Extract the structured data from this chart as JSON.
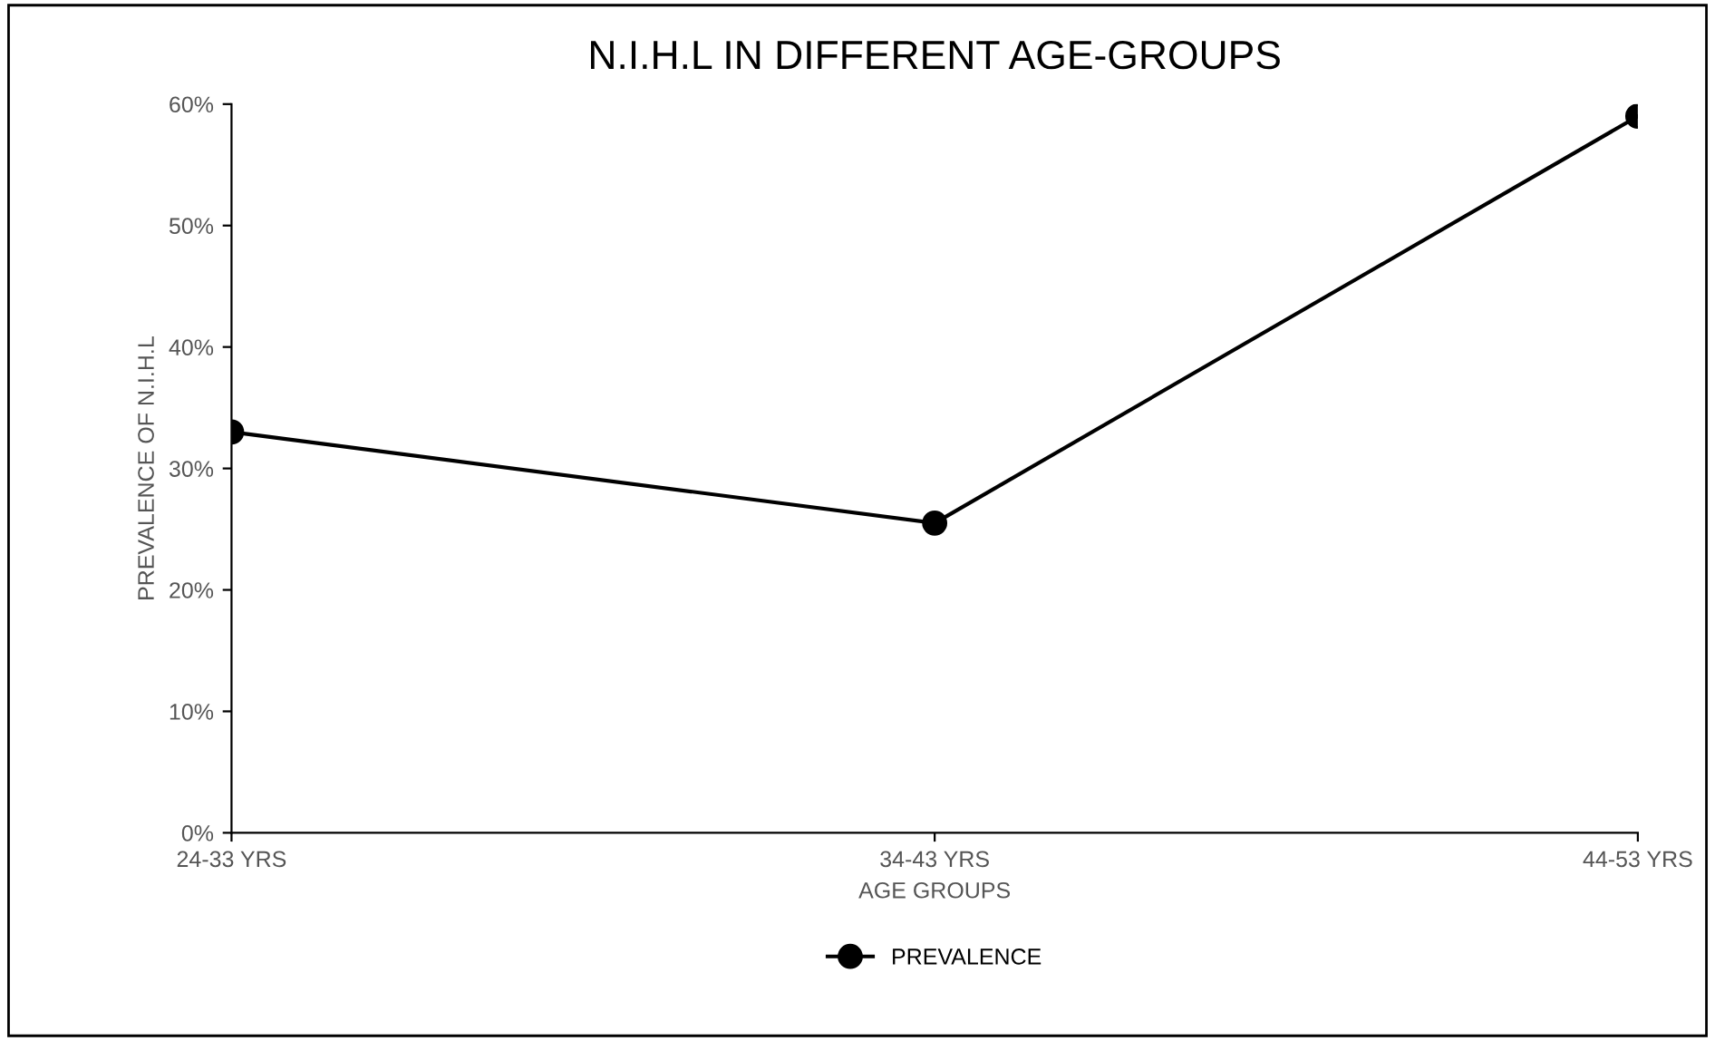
{
  "chart_data": {
    "type": "line",
    "title": "N.I.H.L IN DIFFERENT AGE-GROUPS",
    "xlabel": "AGE GROUPS",
    "ylabel": "PREVALENCE OF N.I.H.L",
    "categories": [
      "24-33 YRS",
      "34-43 YRS",
      "44-53 YRS"
    ],
    "series": [
      {
        "name": "PREVALENCE",
        "color": "#000000",
        "values": [
          33,
          25.5,
          59
        ]
      }
    ],
    "ylim": [
      0,
      60
    ],
    "yticks": [
      {
        "value": 0,
        "label": "0%"
      },
      {
        "value": 10,
        "label": "10%"
      },
      {
        "value": 20,
        "label": "20%"
      },
      {
        "value": 30,
        "label": "30%"
      },
      {
        "value": 40,
        "label": "40%"
      },
      {
        "value": 50,
        "label": "50%"
      },
      {
        "value": 60,
        "label": "60%"
      }
    ],
    "grid": false,
    "legend": "bottom",
    "marker": "circle",
    "line_style": "solid"
  }
}
